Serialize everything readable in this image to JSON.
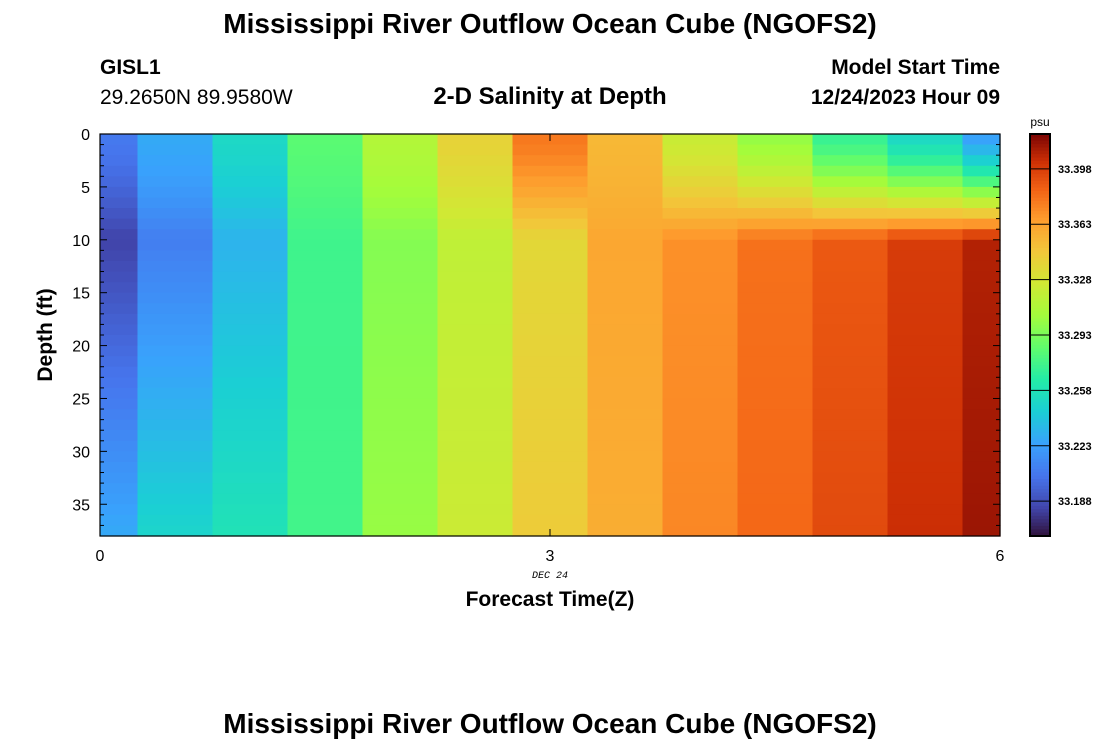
{
  "header": {
    "title": "Mississippi River Outflow Ocean Cube (NGOFS2)",
    "station_id": "GISL1",
    "coordinates": "29.2650N  89.9580W",
    "subtitle": "2-D Salinity at Depth",
    "start_label": "Model Start Time",
    "start_value": "12/24/2023 Hour 09"
  },
  "footer": {
    "title": "Mississippi River Outflow Ocean Cube (NGOFS2)"
  },
  "chart_data": {
    "type": "heatmap",
    "title": "2-D Salinity at Depth",
    "xlabel": "Forecast Time(Z)",
    "ylabel": "Depth (ft)",
    "x_ticks": [
      "0",
      "3",
      "6"
    ],
    "x_tick_values": [
      0,
      3,
      6
    ],
    "date_label": "DEC 24",
    "y_ticks": [
      "0",
      "5",
      "10",
      "15",
      "20",
      "25",
      "30",
      "35"
    ],
    "y_tick_values": [
      0,
      5,
      10,
      15,
      20,
      25,
      30,
      35
    ],
    "xlim": [
      0,
      6
    ],
    "ylim": [
      0,
      38
    ],
    "colorbar": {
      "unit": "psu",
      "ticks": [
        "33.398",
        "33.363",
        "33.328",
        "33.293",
        "33.258",
        "33.223",
        "33.188"
      ],
      "tick_values": [
        33.398,
        33.363,
        33.328,
        33.293,
        33.258,
        33.223,
        33.188
      ],
      "range": [
        33.166,
        33.42
      ]
    },
    "time_steps": [
      0,
      0.5,
      1,
      1.5,
      2,
      2.5,
      3,
      3.5,
      4,
      4.5,
      5,
      5.5,
      6
    ],
    "depth_layers": [
      0,
      1,
      2,
      3,
      4,
      5,
      6,
      7,
      8,
      9,
      10,
      11,
      12,
      13,
      14,
      15,
      16,
      17,
      18,
      19,
      20,
      21,
      22,
      23,
      24,
      25,
      26,
      27,
      28,
      29,
      30,
      31,
      32,
      33,
      34,
      35,
      36,
      37,
      38
    ],
    "salinity_profiles": [
      {
        "time": 0,
        "surface": 33.206,
        "mid": 33.183,
        "bottom": 33.228
      },
      {
        "time": 0.5,
        "surface": 33.228,
        "mid": 33.208,
        "bottom": 33.249
      },
      {
        "time": 1,
        "surface": 33.251,
        "mid": 33.232,
        "bottom": 33.258
      },
      {
        "time": 1.5,
        "surface": 33.283,
        "mid": 33.274,
        "bottom": 33.275
      },
      {
        "time": 2,
        "surface": 33.312,
        "mid": 33.296,
        "bottom": 33.302
      },
      {
        "time": 2.5,
        "surface": 33.339,
        "mid": 33.318,
        "bottom": 33.323
      },
      {
        "time": 3,
        "surface": 33.378,
        "mid": 33.336,
        "bottom": 33.343
      },
      {
        "time": 3.5,
        "surface": 33.353,
        "mid": 33.361,
        "bottom": 33.358
      },
      {
        "time": 4,
        "surface": 33.322,
        "mid": 33.37,
        "bottom": 33.373
      },
      {
        "time": 4.5,
        "surface": 33.301,
        "mid": 33.38,
        "bottom": 33.383
      },
      {
        "time": 5,
        "surface": 33.271,
        "mid": 33.388,
        "bottom": 33.393
      },
      {
        "time": 5.5,
        "surface": 33.251,
        "mid": 33.398,
        "bottom": 33.403
      },
      {
        "time": 6,
        "surface": 33.223,
        "mid": 33.408,
        "bottom": 33.413
      }
    ]
  }
}
